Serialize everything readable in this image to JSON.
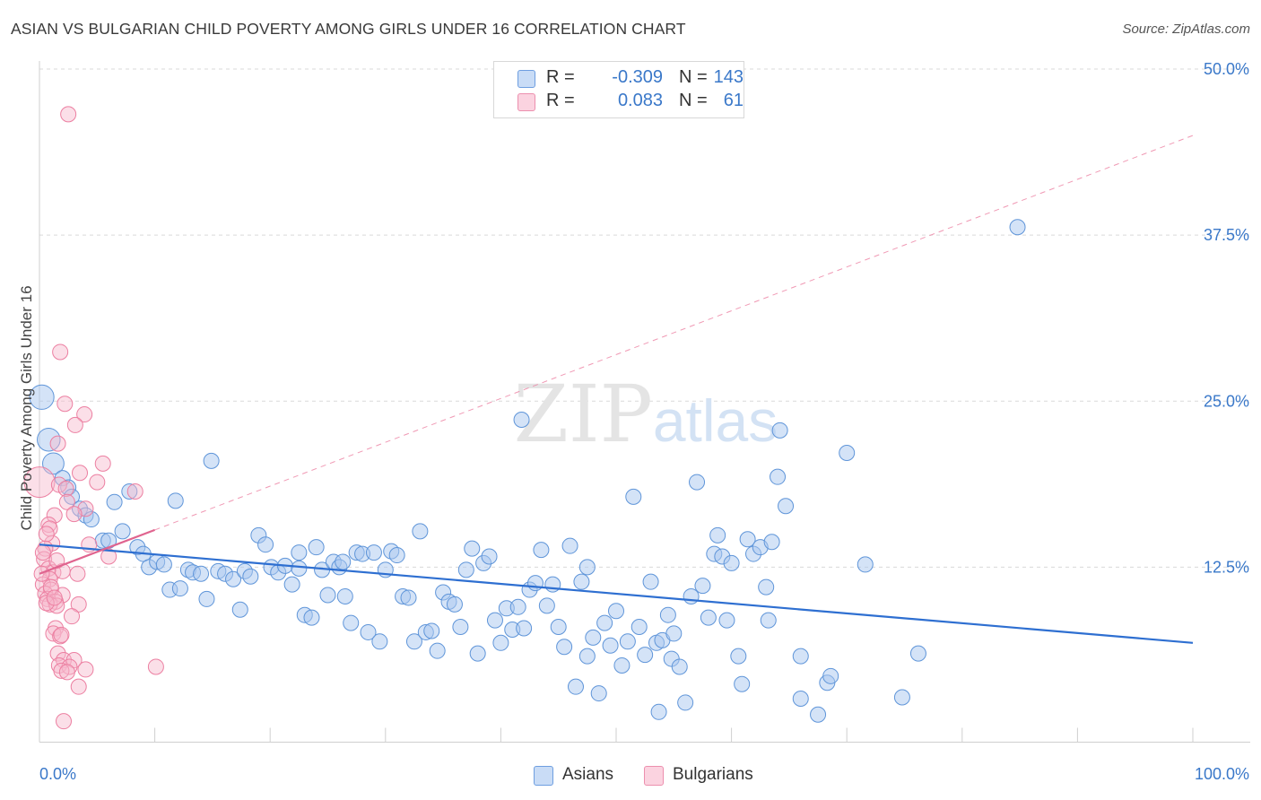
{
  "title": "ASIAN VS BULGARIAN CHILD POVERTY AMONG GIRLS UNDER 16 CORRELATION CHART",
  "source": "Source: ZipAtlas.com",
  "watermark": {
    "zip": "ZIP",
    "atlas": "atlas"
  },
  "legend": {
    "rows": [
      {
        "r_label": "R =",
        "r_value": "-0.309",
        "n_label": "N =",
        "n_value": "143",
        "color": "#a9c8f0"
      },
      {
        "r_label": "R =",
        "r_value": "0.083",
        "n_label": "N =",
        "n_value": "61",
        "color": "#f6b7cb"
      }
    ]
  },
  "bottom_legend": [
    {
      "label": "Asians",
      "color": "#a9c8f0"
    },
    {
      "label": "Bulgarians",
      "color": "#f6b7cb"
    }
  ],
  "colors": {
    "asian_fill": "#a9c8f0",
    "asian_stroke": "#5f95d9",
    "asian_line": "#2e6fd1",
    "bulgarian_fill": "#f6b7cb",
    "bulgarian_stroke": "#ec7fa1",
    "bulgarian_line": "#e0648f",
    "tick_text": "#3a78c9",
    "grid": "#d9d9d9"
  },
  "chart_data": {
    "type": "scatter",
    "title": "ASIAN VS BULGARIAN CHILD POVERTY AMONG GIRLS UNDER 16 CORRELATION CHART",
    "xlabel": "",
    "ylabel": "Child Poverty Among Girls Under 16",
    "xlim": [
      0,
      100
    ],
    "ylim": [
      0,
      50
    ],
    "x_tick_labels": [
      "0.0%",
      "100.0%"
    ],
    "y_ticks": [
      12.5,
      25.0,
      37.5,
      50.0
    ],
    "y_tick_labels": [
      "12.5%",
      "25.0%",
      "37.5%",
      "50.0%"
    ],
    "grid": true,
    "legend_placement": "top-center",
    "series": [
      {
        "name": "Asians",
        "r": -0.309,
        "n": 143,
        "trend": {
          "x": [
            0,
            100
          ],
          "y": [
            14.2,
            6.8
          ]
        },
        "points": [
          [
            0.2,
            25.3,
            1.6
          ],
          [
            0.8,
            22.1,
            1.5
          ],
          [
            1.2,
            20.3,
            1.4
          ],
          [
            2.0,
            19.2,
            1.0
          ],
          [
            2.5,
            18.5,
            1.0
          ],
          [
            2.8,
            17.8,
            1.0
          ],
          [
            3.5,
            16.9,
            1.0
          ],
          [
            4.0,
            16.4,
            1.0
          ],
          [
            4.5,
            16.1,
            1.0
          ],
          [
            5.5,
            14.5,
            1.0
          ],
          [
            6.0,
            14.5,
            1.0
          ],
          [
            6.5,
            17.4,
            1.0
          ],
          [
            7.2,
            15.2,
            1.0
          ],
          [
            7.8,
            18.2,
            1.0
          ],
          [
            8.5,
            14.0,
            1.0
          ],
          [
            9.0,
            13.5,
            1.0
          ],
          [
            9.5,
            12.5,
            1.0
          ],
          [
            10.2,
            12.9,
            1.0
          ],
          [
            10.8,
            12.7,
            1.0
          ],
          [
            11.3,
            10.8,
            1.0
          ],
          [
            11.8,
            17.5,
            1.0
          ],
          [
            12.2,
            10.9,
            1.0
          ],
          [
            12.9,
            12.3,
            1.0
          ],
          [
            13.3,
            12.1,
            1.0
          ],
          [
            14.0,
            12.0,
            1.0
          ],
          [
            14.5,
            10.1,
            1.0
          ],
          [
            14.9,
            20.5,
            1.0
          ],
          [
            15.5,
            12.2,
            1.0
          ],
          [
            16.1,
            12.0,
            1.0
          ],
          [
            16.8,
            11.6,
            1.0
          ],
          [
            17.4,
            9.3,
            1.0
          ],
          [
            17.8,
            12.2,
            1.0
          ],
          [
            18.3,
            11.8,
            1.0
          ],
          [
            19.0,
            14.9,
            1.0
          ],
          [
            19.6,
            14.2,
            1.0
          ],
          [
            20.1,
            12.5,
            1.0
          ],
          [
            20.7,
            12.1,
            1.0
          ],
          [
            21.3,
            12.6,
            1.0
          ],
          [
            21.9,
            11.2,
            1.0
          ],
          [
            22.5,
            12.4,
            1.0
          ],
          [
            23.0,
            8.9,
            1.0
          ],
          [
            23.6,
            8.7,
            1.0
          ],
          [
            24.0,
            14.0,
            1.0
          ],
          [
            24.5,
            12.3,
            1.0
          ],
          [
            25.0,
            10.4,
            1.0
          ],
          [
            25.5,
            12.9,
            1.0
          ],
          [
            26.0,
            12.5,
            1.0
          ],
          [
            26.5,
            10.3,
            1.0
          ],
          [
            27.0,
            8.3,
            1.0
          ],
          [
            27.5,
            13.6,
            1.0
          ],
          [
            28.0,
            13.5,
            1.0
          ],
          [
            28.5,
            7.6,
            1.0
          ],
          [
            29.0,
            13.6,
            1.0
          ],
          [
            29.5,
            6.9,
            1.0
          ],
          [
            30.0,
            12.3,
            1.0
          ],
          [
            30.5,
            13.7,
            1.0
          ],
          [
            31.0,
            13.4,
            1.0
          ],
          [
            31.5,
            10.3,
            1.0
          ],
          [
            32.0,
            10.2,
            1.0
          ],
          [
            32.5,
            6.9,
            1.0
          ],
          [
            33.0,
            15.2,
            1.0
          ],
          [
            33.5,
            7.6,
            1.0
          ],
          [
            34.0,
            7.7,
            1.0
          ],
          [
            34.5,
            6.2,
            1.0
          ],
          [
            35.0,
            10.6,
            1.0
          ],
          [
            35.5,
            9.9,
            1.0
          ],
          [
            36.0,
            9.7,
            1.0
          ],
          [
            36.5,
            8.0,
            1.0
          ],
          [
            37.0,
            12.3,
            1.0
          ],
          [
            37.5,
            13.9,
            1.0
          ],
          [
            38.0,
            6.0,
            1.0
          ],
          [
            38.5,
            12.8,
            1.0
          ],
          [
            39.0,
            13.3,
            1.0
          ],
          [
            39.5,
            8.5,
            1.0
          ],
          [
            40.0,
            6.8,
            1.0
          ],
          [
            40.5,
            9.4,
            1.0
          ],
          [
            41.0,
            7.8,
            1.0
          ],
          [
            41.5,
            9.5,
            1.0
          ],
          [
            41.8,
            23.6,
            1.0
          ],
          [
            42.0,
            7.9,
            1.0
          ],
          [
            42.5,
            10.8,
            1.0
          ],
          [
            43.0,
            11.3,
            1.0
          ],
          [
            43.5,
            13.8,
            1.0
          ],
          [
            44.0,
            9.6,
            1.0
          ],
          [
            44.5,
            11.2,
            1.0
          ],
          [
            45.0,
            8.0,
            1.0
          ],
          [
            45.5,
            6.5,
            1.0
          ],
          [
            46.0,
            14.1,
            1.0
          ],
          [
            46.5,
            3.5,
            1.0
          ],
          [
            47.0,
            11.4,
            1.0
          ],
          [
            47.5,
            5.8,
            1.0
          ],
          [
            48.0,
            7.2,
            1.0
          ],
          [
            48.5,
            3.0,
            1.0
          ],
          [
            49.0,
            8.3,
            1.0
          ],
          [
            49.5,
            6.6,
            1.0
          ],
          [
            50.0,
            9.2,
            1.0
          ],
          [
            50.5,
            5.1,
            1.0
          ],
          [
            51.0,
            6.9,
            1.0
          ],
          [
            51.5,
            17.8,
            1.0
          ],
          [
            52.0,
            8.0,
            1.0
          ],
          [
            52.5,
            5.9,
            1.0
          ],
          [
            53.0,
            11.4,
            1.0
          ],
          [
            53.5,
            6.8,
            1.0
          ],
          [
            53.7,
            1.6,
            1.0
          ],
          [
            54.0,
            7.0,
            1.0
          ],
          [
            54.5,
            8.9,
            1.0
          ],
          [
            54.8,
            5.6,
            1.0
          ],
          [
            55.0,
            7.5,
            1.0
          ],
          [
            55.5,
            5.0,
            1.0
          ],
          [
            56.0,
            2.3,
            1.0
          ],
          [
            56.5,
            10.3,
            1.0
          ],
          [
            57.0,
            18.9,
            1.0
          ],
          [
            57.5,
            11.1,
            1.0
          ],
          [
            58.0,
            8.7,
            1.0
          ],
          [
            58.5,
            13.5,
            1.0
          ],
          [
            58.8,
            14.9,
            1.0
          ],
          [
            59.2,
            13.3,
            1.0
          ],
          [
            59.6,
            8.5,
            1.0
          ],
          [
            60.0,
            12.8,
            1.0
          ],
          [
            60.6,
            5.8,
            1.0
          ],
          [
            60.9,
            3.7,
            1.0
          ],
          [
            61.4,
            14.6,
            1.0
          ],
          [
            61.9,
            13.5,
            1.0
          ],
          [
            62.5,
            14.0,
            1.0
          ],
          [
            63.0,
            11.0,
            1.0
          ],
          [
            63.2,
            8.5,
            1.0
          ],
          [
            63.5,
            14.4,
            1.0
          ],
          [
            64.0,
            19.3,
            1.0
          ],
          [
            64.2,
            22.8,
            1.0
          ],
          [
            64.7,
            17.1,
            1.0
          ],
          [
            66.0,
            5.8,
            1.0
          ],
          [
            67.5,
            1.4,
            1.0
          ],
          [
            68.3,
            3.8,
            1.0
          ],
          [
            68.6,
            4.3,
            1.0
          ],
          [
            70.0,
            21.1,
            1.0
          ],
          [
            71.6,
            12.7,
            1.0
          ],
          [
            74.8,
            2.7,
            1.0
          ],
          [
            76.2,
            6.0,
            1.0
          ],
          [
            84.8,
            38.1,
            1.0
          ],
          [
            66.0,
            2.6,
            1.0
          ],
          [
            22.5,
            13.6,
            1.0
          ],
          [
            26.3,
            12.9,
            1.0
          ],
          [
            47.5,
            12.5,
            1.0
          ]
        ]
      },
      {
        "name": "Bulgarians",
        "r": 0.083,
        "n": 61,
        "trend": {
          "x": [
            0,
            10
          ],
          "y": [
            12.0,
            15.3
          ]
        },
        "points": [
          [
            0.0,
            18.9,
            2.0
          ],
          [
            2.5,
            46.6,
            1.0
          ],
          [
            1.8,
            28.7,
            1.0
          ],
          [
            2.2,
            24.8,
            1.0
          ],
          [
            3.9,
            24.0,
            1.0
          ],
          [
            3.1,
            23.2,
            1.0
          ],
          [
            1.6,
            21.8,
            1.0
          ],
          [
            5.5,
            20.3,
            1.0
          ],
          [
            3.5,
            19.6,
            1.0
          ],
          [
            5.0,
            18.9,
            1.0
          ],
          [
            1.7,
            18.7,
            1.0
          ],
          [
            2.3,
            18.4,
            1.0
          ],
          [
            8.3,
            18.2,
            1.0
          ],
          [
            4.0,
            16.9,
            1.0
          ],
          [
            1.3,
            16.4,
            1.0
          ],
          [
            0.8,
            15.7,
            1.0
          ],
          [
            0.9,
            15.4,
            1.0
          ],
          [
            1.1,
            14.3,
            1.0
          ],
          [
            4.3,
            14.2,
            1.0
          ],
          [
            0.5,
            13.9,
            1.0
          ],
          [
            0.4,
            13.1,
            1.0
          ],
          [
            6.0,
            13.3,
            1.0
          ],
          [
            0.8,
            12.4,
            1.0
          ],
          [
            1.2,
            12.1,
            1.0
          ],
          [
            3.3,
            12.0,
            1.0
          ],
          [
            0.9,
            11.6,
            1.0
          ],
          [
            0.3,
            11.2,
            1.0
          ],
          [
            1.0,
            10.8,
            1.0
          ],
          [
            0.5,
            10.5,
            1.0
          ],
          [
            2.0,
            10.4,
            1.0
          ],
          [
            0.7,
            10.1,
            1.0
          ],
          [
            1.4,
            9.9,
            1.0
          ],
          [
            0.9,
            9.7,
            1.0
          ],
          [
            1.5,
            9.6,
            1.0
          ],
          [
            3.4,
            9.7,
            1.0
          ],
          [
            0.6,
            9.8,
            1.0
          ],
          [
            2.8,
            8.8,
            1.0
          ],
          [
            1.4,
            7.9,
            1.0
          ],
          [
            1.2,
            7.5,
            1.0
          ],
          [
            1.8,
            7.3,
            1.0
          ],
          [
            1.6,
            6.0,
            1.0
          ],
          [
            2.1,
            5.5,
            1.0
          ],
          [
            3.0,
            5.5,
            1.0
          ],
          [
            1.7,
            5.1,
            1.0
          ],
          [
            2.6,
            5.0,
            1.0
          ],
          [
            4.0,
            4.8,
            1.0
          ],
          [
            1.9,
            4.7,
            1.0
          ],
          [
            2.4,
            4.6,
            1.0
          ],
          [
            10.1,
            5.0,
            1.0
          ],
          [
            3.4,
            3.5,
            1.0
          ],
          [
            2.1,
            0.9,
            1.0
          ],
          [
            0.2,
            12.0,
            1.0
          ],
          [
            0.3,
            13.6,
            1.0
          ],
          [
            1.0,
            11.0,
            1.0
          ],
          [
            1.3,
            10.2,
            1.0
          ],
          [
            2.0,
            12.2,
            1.0
          ],
          [
            0.6,
            15.0,
            1.0
          ],
          [
            1.5,
            13.0,
            1.0
          ],
          [
            2.4,
            17.4,
            1.0
          ],
          [
            1.9,
            7.4,
            1.0
          ],
          [
            3.0,
            16.5,
            1.0
          ]
        ]
      }
    ]
  }
}
